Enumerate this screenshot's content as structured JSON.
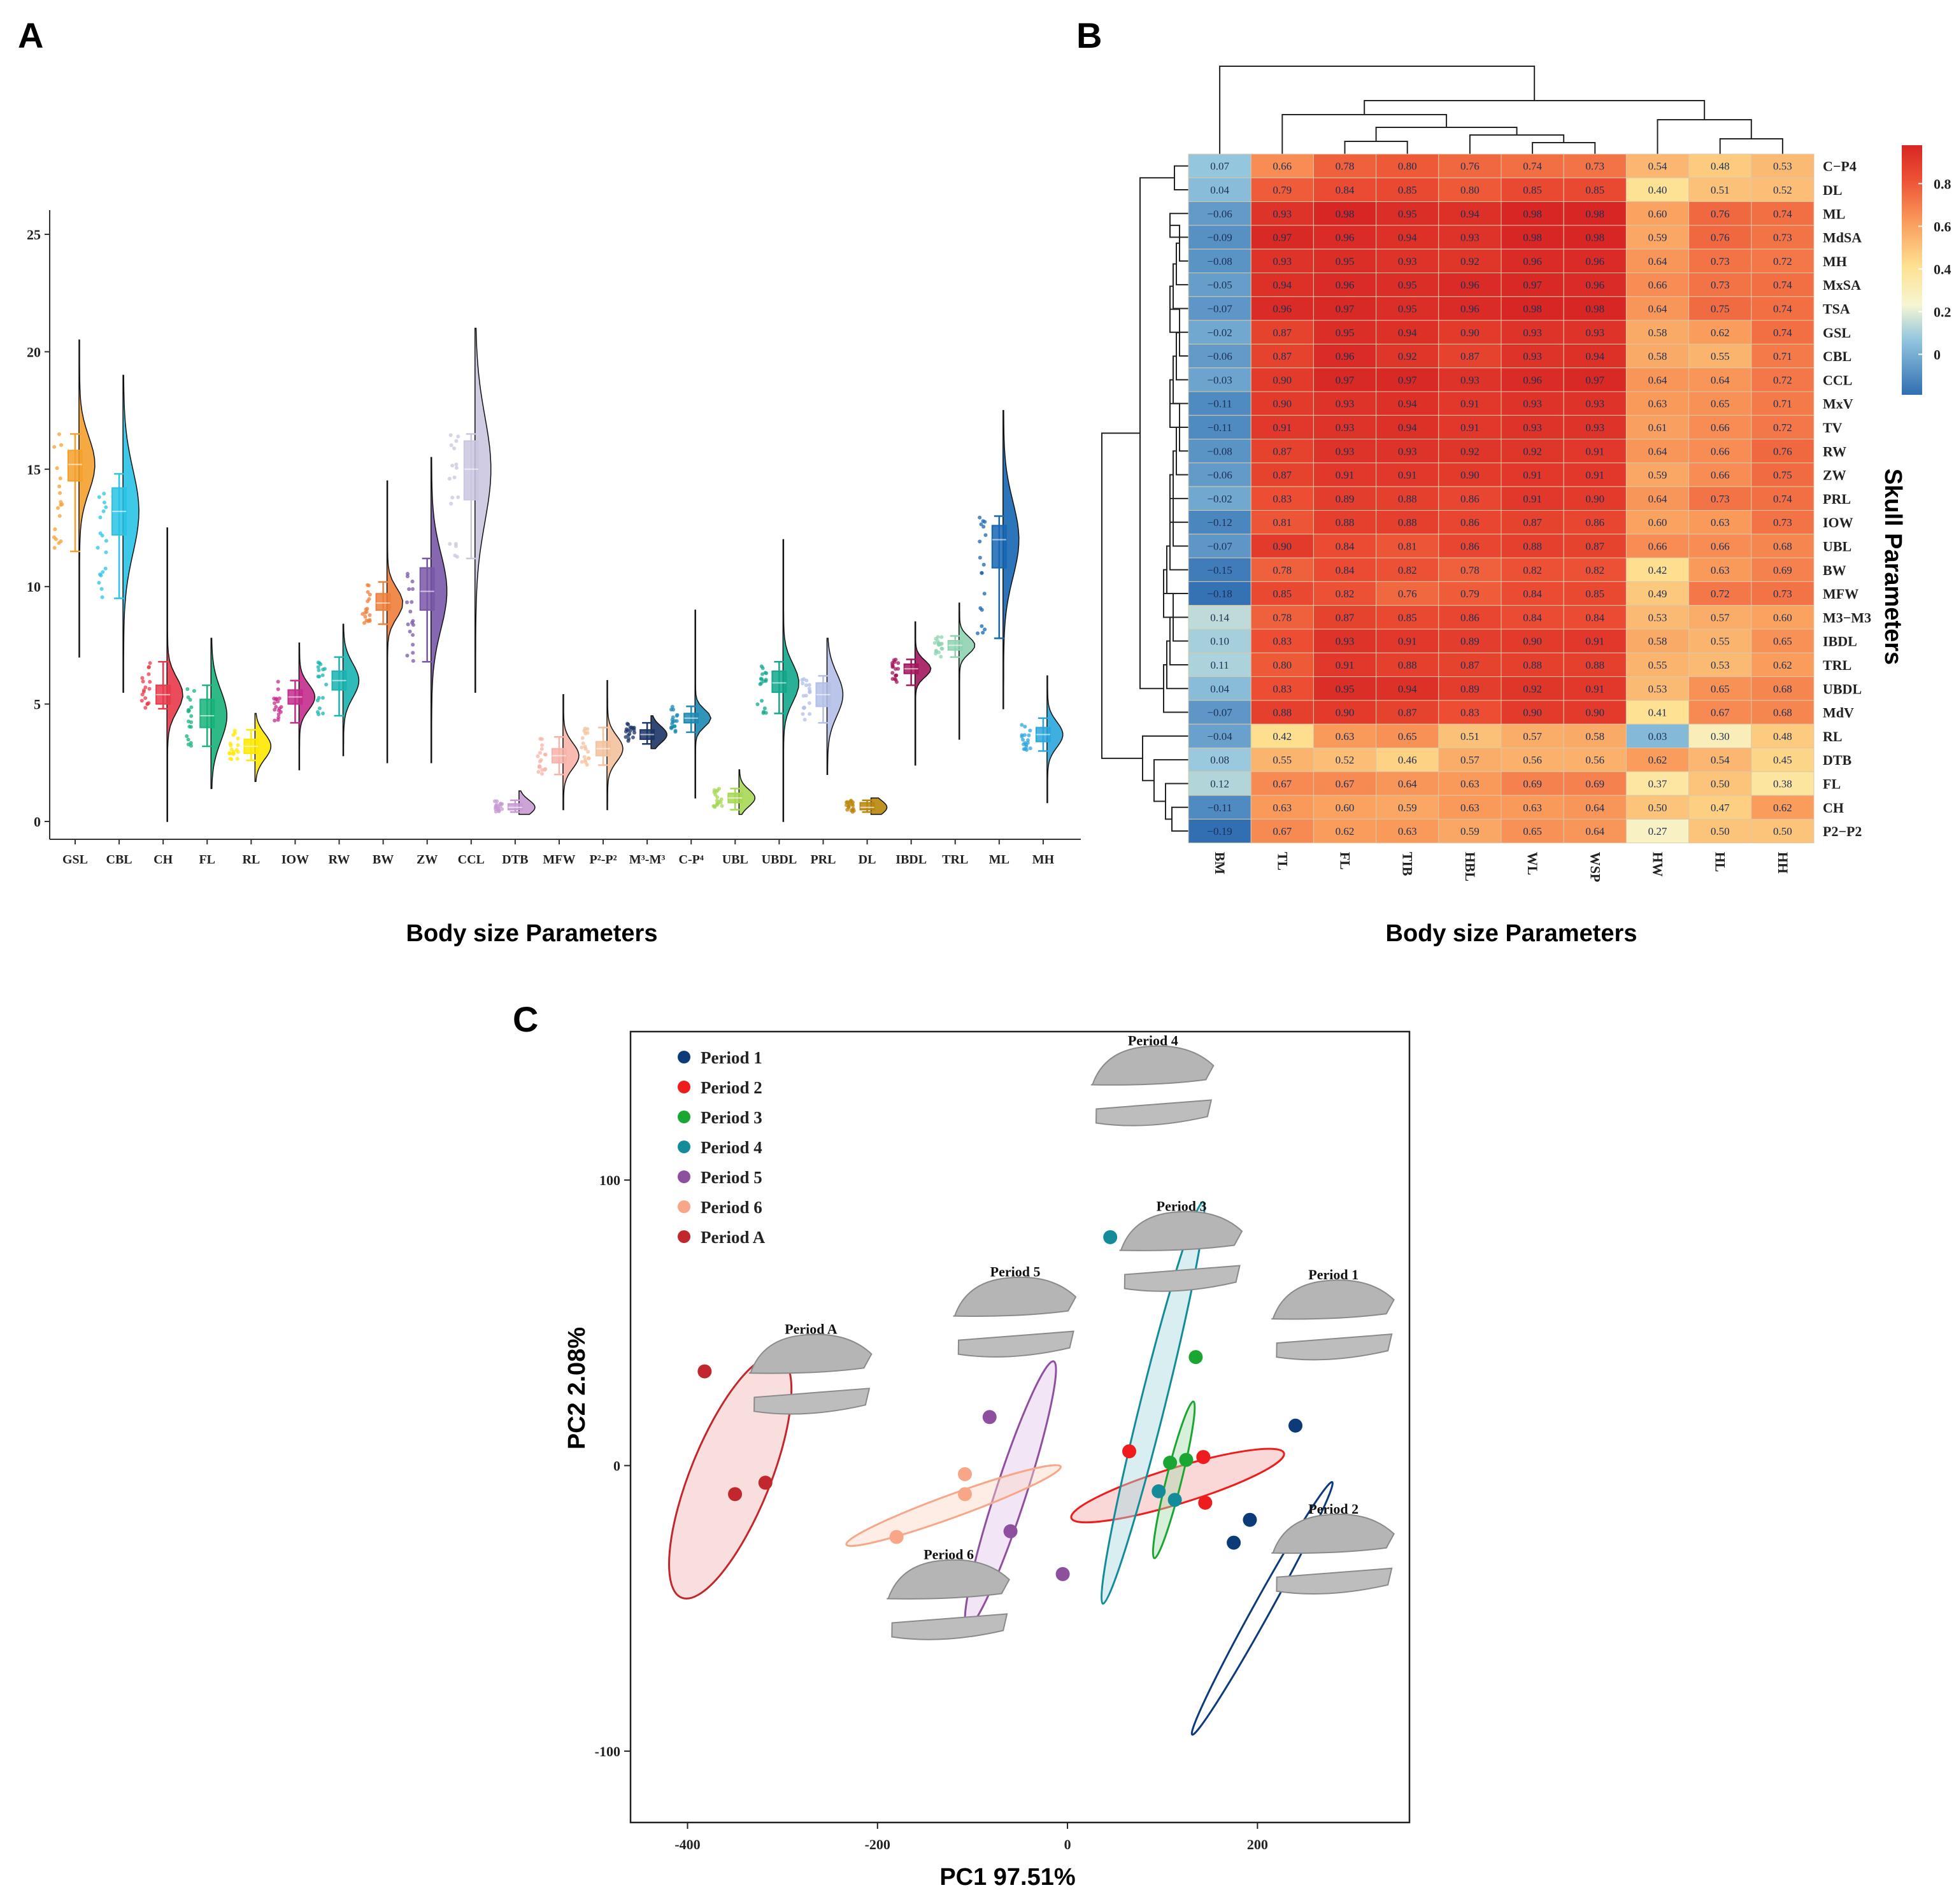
{
  "panels": {
    "A": {
      "letter": "A"
    },
    "B": {
      "letter": "B"
    },
    "C": {
      "letter": "C"
    }
  },
  "chart_data": [
    {
      "id": "A",
      "type": "violin-box",
      "xlabel": "Body size Parameters",
      "ylabel": "",
      "ylim": [
        0,
        25
      ],
      "yticks": [
        0,
        5,
        10,
        15,
        20,
        25
      ],
      "categories": [
        "GSL",
        "CBL",
        "CH",
        "FL",
        "RL",
        "IOW",
        "RW",
        "BW",
        "ZW",
        "CCL",
        "DTB",
        "MFW",
        "P²-P²",
        "M³-M³",
        "C-P⁴",
        "UBL",
        "UBDL",
        "PRL",
        "DL",
        "IBDL",
        "TRL",
        "ML",
        "MH"
      ],
      "colors": [
        "#f5a02c",
        "#29c3e5",
        "#e8394a",
        "#16b37a",
        "#ffe800",
        "#c42c8c",
        "#19b4b1",
        "#ef7e3a",
        "#7957a8",
        "#cbc6e0",
        "#c79ad2",
        "#f7b3a8",
        "#f3c19c",
        "#1c3466",
        "#1b89b3",
        "#a6d854",
        "#11a88c",
        "#b4bfe8",
        "#b8860b",
        "#a3175d",
        "#8fd3b1",
        "#1666b3",
        "#2aa6dc"
      ],
      "stats": [
        {
          "min": 11.5,
          "q1": 14.5,
          "median": 15.2,
          "q3": 15.8,
          "max": 16.5,
          "lo": 7.0,
          "hi": 20.5
        },
        {
          "min": 9.5,
          "q1": 12.2,
          "median": 13.2,
          "q3": 14.2,
          "max": 14.8,
          "lo": 5.5,
          "hi": 19.0
        },
        {
          "min": 4.8,
          "q1": 5.0,
          "median": 5.4,
          "q3": 5.8,
          "max": 6.8,
          "lo": 0.0,
          "hi": 12.5
        },
        {
          "min": 3.2,
          "q1": 4.0,
          "median": 4.5,
          "q3": 5.2,
          "max": 5.8,
          "lo": 1.4,
          "hi": 7.8
        },
        {
          "min": 2.6,
          "q1": 2.9,
          "median": 3.2,
          "q3": 3.5,
          "max": 3.9,
          "lo": 1.7,
          "hi": 4.6
        },
        {
          "min": 4.2,
          "q1": 5.0,
          "median": 5.3,
          "q3": 5.6,
          "max": 6.0,
          "lo": 2.2,
          "hi": 7.6
        },
        {
          "min": 4.5,
          "q1": 5.6,
          "median": 6.0,
          "q3": 6.4,
          "max": 7.0,
          "lo": 2.8,
          "hi": 8.4
        },
        {
          "min": 8.4,
          "q1": 9.0,
          "median": 9.3,
          "q3": 9.7,
          "max": 10.2,
          "lo": 2.5,
          "hi": 14.5
        },
        {
          "min": 6.8,
          "q1": 9.0,
          "median": 9.8,
          "q3": 10.8,
          "max": 11.2,
          "lo": 2.5,
          "hi": 15.5
        },
        {
          "min": 11.2,
          "q1": 13.7,
          "median": 15.0,
          "q3": 16.2,
          "max": 16.5,
          "lo": 5.5,
          "hi": 21.0
        },
        {
          "min": 0.4,
          "q1": 0.5,
          "median": 0.6,
          "q3": 0.75,
          "max": 0.9,
          "lo": 0.3,
          "hi": 1.3
        },
        {
          "min": 2.0,
          "q1": 2.5,
          "median": 2.8,
          "q3": 3.1,
          "max": 3.6,
          "lo": 0.5,
          "hi": 5.4
        },
        {
          "min": 2.4,
          "q1": 2.8,
          "median": 3.1,
          "q3": 3.4,
          "max": 4.0,
          "lo": 0.5,
          "hi": 6.0
        },
        {
          "min": 3.3,
          "q1": 3.5,
          "median": 3.7,
          "q3": 3.9,
          "max": 4.2,
          "lo": 3.1,
          "hi": 4.5
        },
        {
          "min": 3.8,
          "q1": 4.2,
          "median": 4.4,
          "q3": 4.6,
          "max": 4.9,
          "lo": 1.0,
          "hi": 9.0
        },
        {
          "min": 0.5,
          "q1": 0.8,
          "median": 1.0,
          "q3": 1.2,
          "max": 1.4,
          "lo": 0.3,
          "hi": 2.2
        },
        {
          "min": 4.6,
          "q1": 5.5,
          "median": 5.9,
          "q3": 6.4,
          "max": 6.8,
          "lo": 0.0,
          "hi": 12.0
        },
        {
          "min": 4.2,
          "q1": 4.9,
          "median": 5.4,
          "q3": 5.9,
          "max": 6.2,
          "lo": 2.0,
          "hi": 7.8
        },
        {
          "min": 0.4,
          "q1": 0.5,
          "median": 0.6,
          "q3": 0.8,
          "max": 0.9,
          "lo": 0.3,
          "hi": 1.0
        },
        {
          "min": 5.8,
          "q1": 6.3,
          "median": 6.5,
          "q3": 6.7,
          "max": 6.9,
          "lo": 2.4,
          "hi": 8.5
        },
        {
          "min": 7.0,
          "q1": 7.3,
          "median": 7.5,
          "q3": 7.7,
          "max": 7.9,
          "lo": 3.5,
          "hi": 9.3
        },
        {
          "min": 7.8,
          "q1": 10.8,
          "median": 12.0,
          "q3": 12.6,
          "max": 13.0,
          "lo": 4.8,
          "hi": 17.5
        },
        {
          "min": 3.0,
          "q1": 3.4,
          "median": 3.7,
          "q3": 4.0,
          "max": 4.4,
          "lo": 0.8,
          "hi": 6.2
        }
      ]
    },
    {
      "id": "B",
      "type": "heatmap",
      "xlabel": "Body size Parameters",
      "ylabel": "Skull Parameters",
      "columns": [
        "BM",
        "TL",
        "FL",
        "TIB",
        "HBL",
        "WL",
        "WSP",
        "HW",
        "HL",
        "HH"
      ],
      "rows": [
        "C−P4",
        "DL",
        "ML",
        "MdSA",
        "MH",
        "MxSA",
        "TSA",
        "GSL",
        "CBL",
        "CCL",
        "MxV",
        "TV",
        "RW",
        "ZW",
        "PRL",
        "IOW",
        "UBL",
        "BW",
        "MFW",
        "M3−M3",
        "IBDL",
        "TRL",
        "UBDL",
        "MdV",
        "RL",
        "DTB",
        "FL",
        "CH",
        "P2−P2"
      ],
      "values": [
        [
          0.07,
          0.66,
          0.78,
          0.8,
          0.76,
          0.74,
          0.73,
          0.54,
          0.48,
          0.53
        ],
        [
          0.04,
          0.79,
          0.84,
          0.85,
          0.8,
          0.85,
          0.85,
          0.4,
          0.51,
          0.52
        ],
        [
          -0.06,
          0.93,
          0.98,
          0.95,
          0.94,
          0.98,
          0.98,
          0.6,
          0.76,
          0.74
        ],
        [
          -0.09,
          0.97,
          0.96,
          0.94,
          0.93,
          0.98,
          0.98,
          0.59,
          0.76,
          0.73
        ],
        [
          -0.08,
          0.93,
          0.95,
          0.93,
          0.92,
          0.96,
          0.96,
          0.64,
          0.73,
          0.72
        ],
        [
          -0.05,
          0.94,
          0.96,
          0.95,
          0.96,
          0.97,
          0.96,
          0.66,
          0.73,
          0.74
        ],
        [
          -0.07,
          0.96,
          0.97,
          0.95,
          0.96,
          0.98,
          0.98,
          0.64,
          0.75,
          0.74
        ],
        [
          -0.02,
          0.87,
          0.95,
          0.94,
          0.9,
          0.93,
          0.93,
          0.58,
          0.62,
          0.74
        ],
        [
          -0.06,
          0.87,
          0.96,
          0.92,
          0.87,
          0.93,
          0.94,
          0.58,
          0.55,
          0.71
        ],
        [
          -0.03,
          0.9,
          0.97,
          0.97,
          0.93,
          0.96,
          0.97,
          0.64,
          0.64,
          0.72
        ],
        [
          -0.11,
          0.9,
          0.93,
          0.94,
          0.91,
          0.93,
          0.93,
          0.63,
          0.65,
          0.71
        ],
        [
          -0.11,
          0.91,
          0.93,
          0.94,
          0.91,
          0.93,
          0.93,
          0.61,
          0.66,
          0.72
        ],
        [
          -0.08,
          0.87,
          0.93,
          0.93,
          0.92,
          0.92,
          0.91,
          0.64,
          0.66,
          0.76
        ],
        [
          -0.06,
          0.87,
          0.91,
          0.91,
          0.9,
          0.91,
          0.91,
          0.59,
          0.66,
          0.75
        ],
        [
          -0.02,
          0.83,
          0.89,
          0.88,
          0.86,
          0.91,
          0.9,
          0.64,
          0.73,
          0.74
        ],
        [
          -0.12,
          0.81,
          0.88,
          0.88,
          0.86,
          0.87,
          0.86,
          0.6,
          0.63,
          0.73
        ],
        [
          -0.07,
          0.9,
          0.84,
          0.81,
          0.86,
          0.88,
          0.87,
          0.66,
          0.66,
          0.68
        ],
        [
          -0.15,
          0.78,
          0.84,
          0.82,
          0.78,
          0.82,
          0.82,
          0.42,
          0.63,
          0.69
        ],
        [
          -0.18,
          0.85,
          0.82,
          0.76,
          0.79,
          0.84,
          0.85,
          0.49,
          0.72,
          0.73
        ],
        [
          0.14,
          0.78,
          0.87,
          0.85,
          0.86,
          0.84,
          0.84,
          0.53,
          0.57,
          0.6
        ],
        [
          0.1,
          0.83,
          0.93,
          0.91,
          0.89,
          0.9,
          0.91,
          0.58,
          0.55,
          0.65
        ],
        [
          0.11,
          0.8,
          0.91,
          0.88,
          0.87,
          0.88,
          0.88,
          0.55,
          0.53,
          0.62
        ],
        [
          0.04,
          0.83,
          0.95,
          0.94,
          0.89,
          0.92,
          0.91,
          0.53,
          0.65,
          0.68
        ],
        [
          -0.07,
          0.88,
          0.9,
          0.87,
          0.83,
          0.9,
          0.9,
          0.41,
          0.67,
          0.68
        ],
        [
          -0.04,
          0.42,
          0.63,
          0.65,
          0.51,
          0.57,
          0.58,
          0.03,
          0.3,
          0.48
        ],
        [
          0.08,
          0.55,
          0.52,
          0.46,
          0.57,
          0.56,
          0.56,
          0.62,
          0.54,
          0.45
        ],
        [
          0.12,
          0.67,
          0.67,
          0.64,
          0.63,
          0.69,
          0.69,
          0.37,
          0.5,
          0.38
        ],
        [
          -0.11,
          0.63,
          0.6,
          0.59,
          0.63,
          0.63,
          0.64,
          0.5,
          0.47,
          0.62
        ],
        [
          -0.19,
          0.67,
          0.62,
          0.63,
          0.59,
          0.65,
          0.64,
          0.27,
          0.5,
          0.5
        ]
      ],
      "legend_ticks": [
        0,
        0.2,
        0.4,
        0.6,
        0.8
      ],
      "legend_range": [
        -0.19,
        0.98
      ]
    },
    {
      "id": "C",
      "type": "scatter",
      "xlabel": "PC1 97.51%",
      "ylabel": "PC2 2.08%",
      "xlim": [
        -460,
        360
      ],
      "ylim": [
        -125,
        152
      ],
      "xticks": [
        -400,
        -200,
        0,
        200
      ],
      "yticks": [
        -100,
        0,
        100
      ],
      "series": [
        {
          "name": "Period 1",
          "color": "#0d3b7a",
          "points": [
            [
              240,
              14
            ],
            [
              192,
              -19
            ],
            [
              175,
              -27
            ]
          ],
          "ellipse": {
            "cx": 205,
            "cy": -50,
            "rx": 152,
            "ry": 9,
            "angle": -61,
            "fill": "none"
          }
        },
        {
          "name": "Period 2",
          "color": "#ee1c1c",
          "points": [
            [
              65,
              5
            ],
            [
              143,
              3
            ],
            [
              145,
              -13
            ]
          ],
          "ellipse": {
            "cx": 116,
            "cy": -7,
            "rx": 117,
            "ry": 19,
            "angle": -17,
            "fill": "#f4a9a9"
          }
        },
        {
          "name": "Period 3",
          "color": "#1aa632",
          "points": [
            [
              135,
              38
            ],
            [
              108,
              1
            ],
            [
              125,
              2
            ]
          ],
          "ellipse": {
            "cx": 112,
            "cy": -5,
            "rx": 85,
            "ry": 8,
            "angle": -76,
            "fill": "#a8dcae"
          }
        },
        {
          "name": "Period 4",
          "color": "#138b99",
          "points": [
            [
              45,
              80
            ],
            [
              96,
              -9
            ],
            [
              113,
              -12
            ]
          ],
          "ellipse": {
            "cx": 90,
            "cy": 22,
            "rx": 218,
            "ry": 13,
            "angle": -76,
            "fill": "#a8dadf"
          }
        },
        {
          "name": "Period 5",
          "color": "#8e4f9f",
          "points": [
            [
              -82,
              17
            ],
            [
              -60,
              -23
            ],
            [
              -5,
              -38
            ]
          ],
          "ellipse": {
            "cx": -60,
            "cy": -10,
            "rx": 147,
            "ry": 16,
            "angle": -72,
            "fill": "#e3c6ea"
          }
        },
        {
          "name": "Period 6",
          "color": "#f7a688",
          "points": [
            [
              -180,
              -25
            ],
            [
              -108,
              -3
            ],
            [
              -108,
              -10
            ]
          ],
          "ellipse": {
            "cx": -120,
            "cy": -14,
            "rx": 120,
            "ry": 12,
            "angle": -20,
            "fill": "#fbd6c5"
          }
        },
        {
          "name": "Period A",
          "color": "#c1272d",
          "points": [
            [
              -382,
              33
            ],
            [
              -350,
              -10
            ],
            [
              -318,
              -6
            ]
          ],
          "ellipse": {
            "cx": -355,
            "cy": -4,
            "rx": 137,
            "ry": 42,
            "angle": -68,
            "fill": "#f2b6b6"
          }
        }
      ],
      "skull_labels": [
        {
          "text": "Period 4",
          "x": 90,
          "y": 149
        },
        {
          "text": "Period 3",
          "x": 120,
          "y": 91
        },
        {
          "text": "Period 1",
          "x": 280,
          "y": 67
        },
        {
          "text": "Period 5",
          "x": -55,
          "y": 68
        },
        {
          "text": "Period A",
          "x": -270,
          "y": 48
        },
        {
          "text": "Period 2",
          "x": 280,
          "y": -15
        },
        {
          "text": "Period 6",
          "x": -125,
          "y": -31
        }
      ]
    }
  ]
}
